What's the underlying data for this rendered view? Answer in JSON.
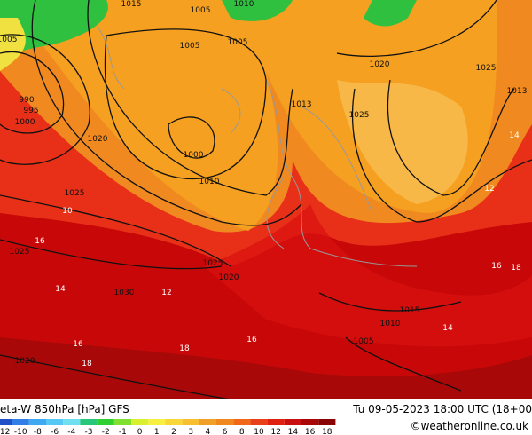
{
  "header": {
    "title": "eta-W 850hPa [hPa] GFS",
    "time": "Tu 09-05-2023 18:00 UTC (18+00",
    "credit": "©weatheronline.co.uk"
  },
  "isobar_labels": [
    "1015",
    "1005",
    "1010",
    "1005",
    "1005",
    "1005",
    "990",
    "995",
    "1000",
    "1020",
    "1000",
    "1010",
    "1020",
    "1025",
    "1013",
    "1025",
    "1025",
    "1025",
    "1030",
    "1025",
    "1020",
    "1015",
    "1010",
    "1005",
    "1020",
    "1013"
  ],
  "temperature_labels": [
    "16",
    "14",
    "16",
    "18",
    "18",
    "16",
    "12",
    "10",
    "14",
    "16",
    "18",
    "14",
    "12"
  ],
  "legend": {
    "labels": [
      -12,
      -10,
      -8,
      -6,
      -4,
      -3,
      -2,
      -1,
      0,
      1,
      2,
      3,
      4,
      6,
      8,
      10,
      12,
      14,
      16,
      18
    ],
    "colors": [
      "#2050c8",
      "#2f7fe6",
      "#40a8f0",
      "#55c8f5",
      "#70e0f0",
      "#28c878",
      "#30d030",
      "#80e030",
      "#d8f030",
      "#f8f040",
      "#f8d838",
      "#f8c030",
      "#f0a028",
      "#f08820",
      "#f06818",
      "#e84018",
      "#e02010",
      "#c81010",
      "#a80808",
      "#880404"
    ]
  }
}
